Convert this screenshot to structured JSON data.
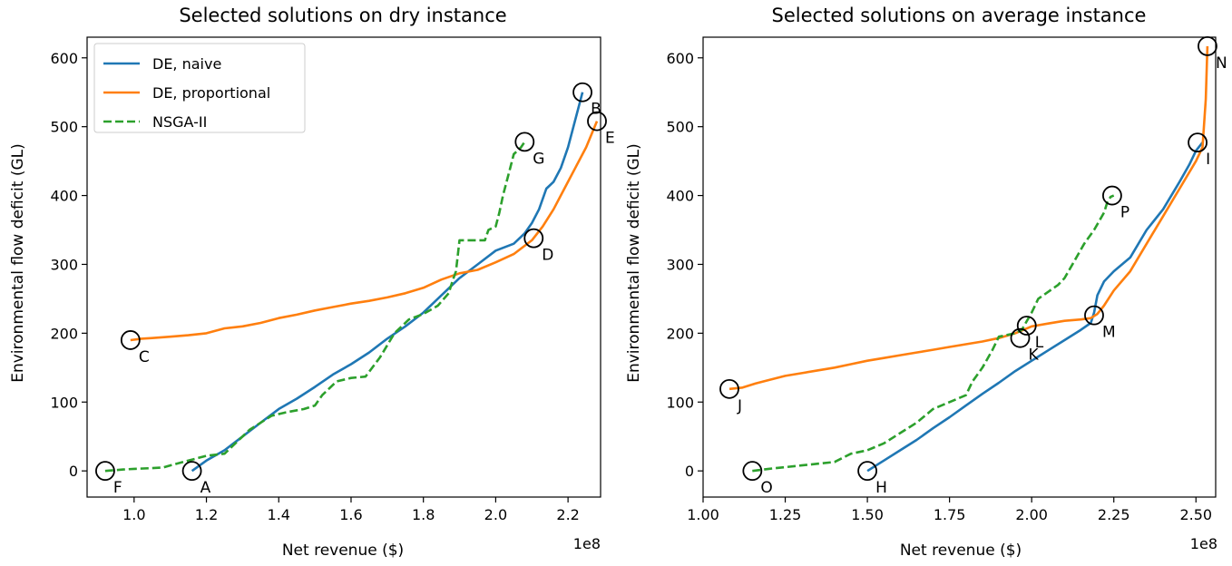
{
  "colors": {
    "de_naive": "#1f77b4",
    "de_proportional": "#ff7f0e",
    "nsga": "#2ca02c",
    "marker": "#000000"
  },
  "chart_data": [
    {
      "type": "line",
      "title": "Selected solutions on dry instance",
      "xlabel": "Net revenue ($)",
      "ylabel": "Environmental flow deficit (GL)",
      "x_offset_text": "1e8",
      "x_scale_note": "x values in units of 1e8 $",
      "xlim": [
        0.87,
        2.29
      ],
      "ylim": [
        -38,
        630
      ],
      "xticks": [
        1.0,
        1.2,
        1.4,
        1.6,
        1.8,
        2.0,
        2.2
      ],
      "xtick_labels": [
        "1.0",
        "1.2",
        "1.4",
        "1.6",
        "1.8",
        "2.0",
        "2.2"
      ],
      "yticks": [
        0,
        100,
        200,
        300,
        400,
        500,
        600
      ],
      "ytick_labels": [
        "0",
        "100",
        "200",
        "300",
        "400",
        "500",
        "600"
      ],
      "legend": {
        "position": "top-left",
        "entries": [
          "DE, naive",
          "DE, proportional",
          "NSGA-II"
        ]
      },
      "series": [
        {
          "name": "DE, naive",
          "style": "solid",
          "color_key": "de_naive",
          "x": [
            1.16,
            1.2,
            1.25,
            1.3,
            1.35,
            1.4,
            1.45,
            1.5,
            1.55,
            1.6,
            1.65,
            1.7,
            1.75,
            1.8,
            1.85,
            1.9,
            1.95,
            2.0,
            2.05,
            2.08,
            2.1,
            2.12,
            2.14,
            2.16,
            2.18,
            2.2,
            2.22,
            2.24
          ],
          "y": [
            0,
            15,
            30,
            50,
            70,
            90,
            105,
            122,
            140,
            155,
            172,
            192,
            210,
            230,
            255,
            280,
            300,
            320,
            330,
            345,
            360,
            380,
            410,
            420,
            440,
            470,
            510,
            550
          ]
        },
        {
          "name": "DE, proportional",
          "style": "solid",
          "color_key": "de_proportional",
          "x": [
            0.99,
            1.02,
            1.05,
            1.1,
            1.15,
            1.2,
            1.25,
            1.3,
            1.35,
            1.4,
            1.45,
            1.5,
            1.55,
            1.6,
            1.65,
            1.7,
            1.75,
            1.8,
            1.85,
            1.9,
            1.95,
            2.0,
            2.05,
            2.1,
            2.13,
            2.16,
            2.19,
            2.22,
            2.25,
            2.28
          ],
          "y": [
            190,
            192,
            193,
            195,
            197,
            200,
            207,
            210,
            215,
            222,
            227,
            233,
            238,
            243,
            247,
            252,
            258,
            266,
            278,
            287,
            292,
            303,
            315,
            335,
            355,
            380,
            410,
            440,
            470,
            508
          ]
        },
        {
          "name": "NSGA-II",
          "style": "dashed",
          "color_key": "nsga",
          "x": [
            0.92,
            0.97,
            1.0,
            1.05,
            1.08,
            1.1,
            1.15,
            1.2,
            1.25,
            1.28,
            1.32,
            1.38,
            1.42,
            1.47,
            1.5,
            1.52,
            1.56,
            1.6,
            1.64,
            1.68,
            1.72,
            1.76,
            1.8,
            1.84,
            1.87,
            1.88,
            1.89,
            1.9,
            1.92,
            1.95,
            1.97,
            1.98,
            2.0,
            2.01,
            2.02,
            2.03,
            2.04,
            2.05,
            2.06,
            2.07,
            2.08
          ],
          "y": [
            0,
            2,
            3,
            4,
            5,
            8,
            15,
            22,
            25,
            40,
            60,
            80,
            85,
            90,
            95,
            110,
            130,
            135,
            137,
            165,
            200,
            220,
            228,
            240,
            258,
            275,
            290,
            335,
            335,
            335,
            335,
            350,
            355,
            375,
            400,
            420,
            440,
            460,
            465,
            470,
            478
          ]
        }
      ],
      "annotations": [
        {
          "label": "A",
          "x": 1.16,
          "y": 0
        },
        {
          "label": "B",
          "x": 2.24,
          "y": 550
        },
        {
          "label": "C",
          "x": 0.99,
          "y": 190
        },
        {
          "label": "D",
          "x": 2.105,
          "y": 338
        },
        {
          "label": "E",
          "x": 2.28,
          "y": 508
        },
        {
          "label": "F",
          "x": 0.92,
          "y": 0
        },
        {
          "label": "G",
          "x": 2.08,
          "y": 478
        }
      ]
    },
    {
      "type": "line",
      "title": "Selected solutions on average instance",
      "xlabel": "Net revenue ($)",
      "ylabel": "Environmental flow deficit (GL)",
      "x_offset_text": "1e8",
      "x_scale_note": "x values in units of 1e8 $",
      "xlim": [
        1.0,
        2.56
      ],
      "ylim": [
        -38,
        630
      ],
      "xticks": [
        1.0,
        1.25,
        1.5,
        1.75,
        2.0,
        2.25,
        2.5
      ],
      "xtick_labels": [
        "1.00",
        "1.25",
        "1.50",
        "1.75",
        "2.00",
        "2.25",
        "2.50"
      ],
      "yticks": [
        0,
        100,
        200,
        300,
        400,
        500,
        600
      ],
      "ytick_labels": [
        "0",
        "100",
        "200",
        "300",
        "400",
        "500",
        "600"
      ],
      "series": [
        {
          "name": "DE, naive",
          "style": "solid",
          "color_key": "de_naive",
          "x": [
            1.5,
            1.55,
            1.6,
            1.65,
            1.7,
            1.75,
            1.8,
            1.85,
            1.9,
            1.95,
            2.0,
            2.05,
            2.1,
            2.15,
            2.18,
            2.19,
            2.2,
            2.22,
            2.25,
            2.3,
            2.35,
            2.4,
            2.45,
            2.48,
            2.5,
            2.52
          ],
          "y": [
            0,
            15,
            30,
            45,
            62,
            78,
            95,
            112,
            128,
            145,
            160,
            175,
            190,
            205,
            215,
            230,
            255,
            275,
            290,
            310,
            350,
            380,
            420,
            445,
            465,
            477
          ]
        },
        {
          "name": "DE, proportional",
          "style": "solid",
          "color_key": "de_proportional",
          "x": [
            1.08,
            1.12,
            1.16,
            1.2,
            1.25,
            1.3,
            1.35,
            1.4,
            1.45,
            1.5,
            1.55,
            1.6,
            1.65,
            1.7,
            1.75,
            1.8,
            1.85,
            1.9,
            1.95,
            2.0,
            2.05,
            2.1,
            2.15,
            2.18,
            2.2,
            2.22,
            2.25,
            2.3,
            2.35,
            2.4,
            2.45,
            2.5,
            2.52,
            2.53,
            2.535
          ],
          "y": [
            119,
            121,
            127,
            132,
            138,
            142,
            146,
            150,
            155,
            160,
            164,
            168,
            172,
            176,
            180,
            184,
            188,
            193,
            200,
            210,
            214,
            218,
            220,
            222,
            228,
            240,
            262,
            290,
            330,
            370,
            410,
            450,
            470,
            540,
            617
          ]
        },
        {
          "name": "NSGA-II",
          "style": "dashed",
          "color_key": "nsga",
          "x": [
            1.15,
            1.2,
            1.3,
            1.4,
            1.45,
            1.5,
            1.55,
            1.6,
            1.65,
            1.7,
            1.75,
            1.8,
            1.82,
            1.85,
            1.88,
            1.9,
            1.95,
            1.97,
            2.0,
            2.02,
            2.05,
            2.08,
            2.1,
            2.13,
            2.16,
            2.19,
            2.22,
            2.23,
            2.24,
            2.25
          ],
          "y": [
            0,
            3,
            8,
            13,
            25,
            30,
            40,
            55,
            70,
            90,
            100,
            110,
            130,
            150,
            175,
            195,
            200,
            205,
            230,
            250,
            260,
            270,
            280,
            305,
            330,
            350,
            375,
            390,
            398,
            400
          ]
        }
      ],
      "annotations": [
        {
          "label": "H",
          "x": 1.5,
          "y": 0
        },
        {
          "label": "I",
          "x": 2.505,
          "y": 477
        },
        {
          "label": "J",
          "x": 1.08,
          "y": 119
        },
        {
          "label": "K",
          "x": 1.965,
          "y": 193
        },
        {
          "label": "L",
          "x": 1.985,
          "y": 211
        },
        {
          "label": "M",
          "x": 2.19,
          "y": 226
        },
        {
          "label": "N",
          "x": 2.535,
          "y": 617
        },
        {
          "label": "O",
          "x": 1.15,
          "y": 0
        },
        {
          "label": "P",
          "x": 2.245,
          "y": 400
        }
      ]
    }
  ]
}
